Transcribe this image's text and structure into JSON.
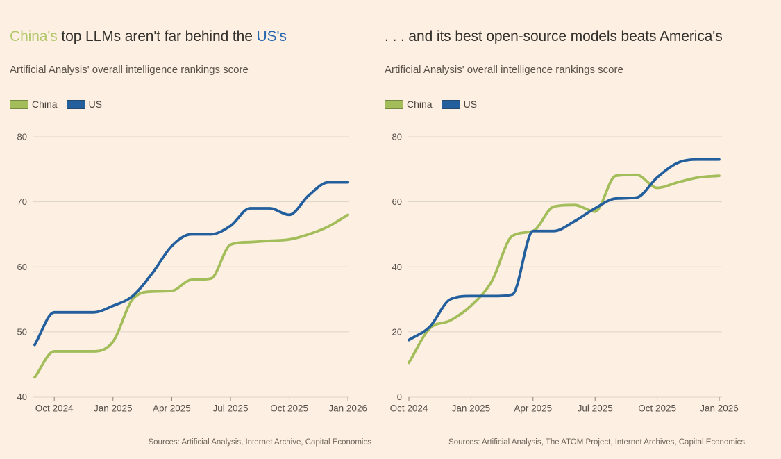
{
  "page": {
    "background_color": "#fdf0e3"
  },
  "charts": [
    {
      "title_parts": [
        {
          "text": "China's ",
          "color": "#b2c76a"
        },
        {
          "text": "top LLMs aren't far behind the ",
          "color": "#33302c"
        },
        {
          "text": "US's",
          "color": "#2465ae"
        }
      ],
      "subtitle": "Artificial Analysis' overall intelligence rankings score",
      "source": "Sources: Artificial Analysis, Internet Archive, Capital Economics",
      "chart_data": {
        "type": "line",
        "title": "China's top LLMs aren't far behind the US's",
        "ylabel": "Artificial Analysis' overall intelligence rankings score",
        "xlabel": "",
        "grid": true,
        "legend_position": "top-left",
        "ylim": [
          40,
          80
        ],
        "yticks": [
          40,
          50,
          60,
          70,
          80
        ],
        "x": [
          "Sep 2024",
          "Oct 2024",
          "Nov 2024",
          "Dec 2024",
          "Jan 2025",
          "Feb 2025",
          "Mar 2025",
          "Apr 2025",
          "May 2025",
          "Jun 2025",
          "Jul 2025",
          "Aug 2025",
          "Sep 2025",
          "Oct 2025",
          "Nov 2025",
          "Dec 2025",
          "Jan 2026"
        ],
        "x_ticks": [
          {
            "index": 1,
            "label": "Oct 2024"
          },
          {
            "index": 4,
            "label": "Jan 2025"
          },
          {
            "index": 7,
            "label": "Apr 2025"
          },
          {
            "index": 10,
            "label": "Jul 2025"
          },
          {
            "index": 13,
            "label": "Oct 2025"
          },
          {
            "index": 16,
            "label": "Jan 2026"
          }
        ],
        "series": [
          {
            "name": "China",
            "color": "#a3bd5a",
            "values": [
              43,
              47,
              47,
              47,
              48.5,
              55,
              56.2,
              56.3,
              58,
              58.2,
              63.4,
              63.8,
              64,
              64.2,
              65,
              66.2,
              68
            ]
          },
          {
            "name": "US",
            "color": "#235e9d",
            "values": [
              48,
              53,
              53,
              53,
              54,
              55.5,
              59,
              63.2,
              65,
              65,
              66.3,
              69,
              69,
              68,
              71,
              73,
              73
            ]
          }
        ]
      }
    },
    {
      "title_parts": [
        {
          "text": ". . . and its best open-source models beats America's",
          "color": "#33302c"
        }
      ],
      "subtitle": "Artificial Analysis' overall intelligence rankings score",
      "source": "Sources: Artificial Analysis, The ATOM Project, Internet Archives, Capital Economics",
      "chart_data": {
        "type": "line",
        "title": "... and its best open-source models beats America's",
        "ylabel": "Artificial Analysis' overall intelligence rankings score",
        "xlabel": "",
        "grid": true,
        "legend_position": "top-left",
        "ylim": [
          0,
          80
        ],
        "yticks": [
          0,
          20,
          40,
          60,
          80
        ],
        "x": [
          "Oct 2024",
          "Nov 2024",
          "Dec 2024",
          "Jan 2025",
          "Feb 2025",
          "Mar 2025",
          "Apr 2025",
          "May 2025",
          "Jun 2025",
          "Jul 2025",
          "Aug 2025",
          "Sep 2025",
          "Oct 2025",
          "Nov 2025",
          "Dec 2025",
          "Jan 2026"
        ],
        "x_ticks": [
          {
            "index": 0,
            "label": "Oct 2024"
          },
          {
            "index": 3,
            "label": "Jan 2025"
          },
          {
            "index": 6,
            "label": "Apr 2025"
          },
          {
            "index": 9,
            "label": "Jul 2025"
          },
          {
            "index": 12,
            "label": "Oct 2025"
          },
          {
            "index": 15,
            "label": "Jan 2026"
          }
        ],
        "series": [
          {
            "name": "China",
            "color": "#a3bd5a",
            "values": [
              10.5,
              21,
              23.5,
              28,
              35.5,
              49.5,
              51,
              58.5,
              59,
              57,
              68,
              68.3,
              64.3,
              66,
              67.5,
              68
            ]
          },
          {
            "name": "US",
            "color": "#235e9d",
            "values": [
              17.5,
              21.5,
              30,
              31,
              31,
              31.5,
              51,
              51,
              54,
              58,
              61,
              61.3,
              67.5,
              72,
              73,
              73
            ]
          }
        ]
      }
    }
  ]
}
